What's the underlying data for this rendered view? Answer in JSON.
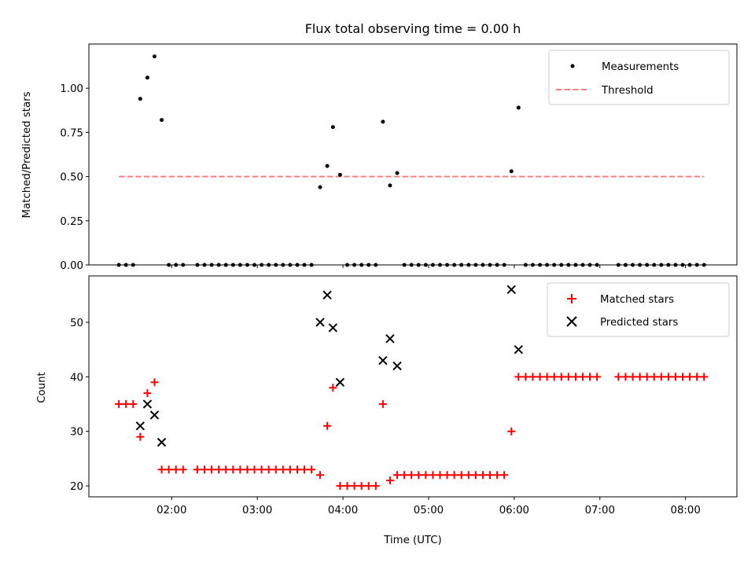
{
  "chart_data": [
    {
      "type": "scatter",
      "title": "Flux total observing time = 0.00 h",
      "xlabel": "",
      "ylabel": "Matched/Predicted stars",
      "ylim": [
        0,
        1.25
      ],
      "yticks": [
        "0.00",
        "0.25",
        "0.50",
        "0.75",
        "1.00"
      ],
      "ytick_values": [
        0,
        0.25,
        0.5,
        0.75,
        1.0
      ],
      "grid": false,
      "legend_position": "top-right",
      "series": [
        {
          "name": "Measurements",
          "kind": "scatter",
          "marker": "dot",
          "color": "#000000",
          "points": [
            [
              "01:23",
              0
            ],
            [
              "01:28",
              0
            ],
            [
              "01:33",
              0
            ],
            [
              "01:38",
              0.94
            ],
            [
              "01:43",
              1.06
            ],
            [
              "01:48",
              1.18
            ],
            [
              "01:53",
              0.82
            ],
            [
              "01:58",
              0
            ],
            [
              "02:03",
              0
            ],
            [
              "02:08",
              0
            ],
            [
              "02:18",
              0
            ],
            [
              "02:23",
              0
            ],
            [
              "02:28",
              0
            ],
            [
              "02:33",
              0
            ],
            [
              "02:38",
              0
            ],
            [
              "02:43",
              0
            ],
            [
              "02:48",
              0
            ],
            [
              "02:53",
              0
            ],
            [
              "02:58",
              0
            ],
            [
              "03:03",
              0
            ],
            [
              "03:08",
              0
            ],
            [
              "03:13",
              0
            ],
            [
              "03:18",
              0
            ],
            [
              "03:23",
              0
            ],
            [
              "03:28",
              0
            ],
            [
              "03:33",
              0
            ],
            [
              "03:38",
              0
            ],
            [
              "03:44",
              0.44
            ],
            [
              "03:49",
              0.56
            ],
            [
              "03:53",
              0.78
            ],
            [
              "03:58",
              0.51
            ],
            [
              "04:03",
              0
            ],
            [
              "04:08",
              0
            ],
            [
              "04:13",
              0
            ],
            [
              "04:18",
              0
            ],
            [
              "04:23",
              0
            ],
            [
              "04:28",
              0.81
            ],
            [
              "04:33",
              0.45
            ],
            [
              "04:38",
              0.52
            ],
            [
              "04:43",
              0
            ],
            [
              "04:48",
              0
            ],
            [
              "04:53",
              0
            ],
            [
              "04:58",
              0
            ],
            [
              "05:03",
              0
            ],
            [
              "05:08",
              0
            ],
            [
              "05:13",
              0
            ],
            [
              "05:18",
              0
            ],
            [
              "05:23",
              0
            ],
            [
              "05:28",
              0
            ],
            [
              "05:33",
              0
            ],
            [
              "05:38",
              0
            ],
            [
              "05:43",
              0
            ],
            [
              "05:48",
              0
            ],
            [
              "05:53",
              0
            ],
            [
              "05:58",
              0.53
            ],
            [
              "06:03",
              0.89
            ],
            [
              "06:08",
              0
            ],
            [
              "06:13",
              0
            ],
            [
              "06:18",
              0
            ],
            [
              "06:23",
              0
            ],
            [
              "06:28",
              0
            ],
            [
              "06:33",
              0
            ],
            [
              "06:38",
              0
            ],
            [
              "06:43",
              0
            ],
            [
              "06:48",
              0
            ],
            [
              "06:53",
              0
            ],
            [
              "06:58",
              0
            ],
            [
              "07:13",
              0
            ],
            [
              "07:18",
              0
            ],
            [
              "07:23",
              0
            ],
            [
              "07:28",
              0
            ],
            [
              "07:33",
              0
            ],
            [
              "07:38",
              0
            ],
            [
              "07:43",
              0
            ],
            [
              "07:48",
              0
            ],
            [
              "07:53",
              0
            ],
            [
              "07:58",
              0
            ],
            [
              "08:03",
              0
            ],
            [
              "08:08",
              0
            ],
            [
              "08:13",
              0
            ]
          ]
        },
        {
          "name": "Threshold",
          "kind": "dashed-line",
          "color": "#ff7f7f",
          "points": [
            [
              "01:23",
              0.5
            ],
            [
              "08:13",
              0.5
            ]
          ]
        }
      ]
    },
    {
      "type": "scatter",
      "title": "",
      "xlabel": "Time (UTC)",
      "ylabel": "Count",
      "ylim": [
        18,
        58.5
      ],
      "yticks": [
        "20",
        "30",
        "40",
        "50"
      ],
      "ytick_values": [
        20,
        30,
        40,
        50
      ],
      "xticks": [
        "02:00",
        "03:00",
        "04:00",
        "05:00",
        "06:00",
        "07:00",
        "08:00"
      ],
      "xlim": [
        "01:02",
        "08:36"
      ],
      "grid": false,
      "legend_position": "top-right",
      "series": [
        {
          "name": "Matched stars",
          "kind": "scatter",
          "marker": "plus",
          "color": "#ff0000",
          "points": [
            [
              "01:23",
              35
            ],
            [
              "01:28",
              35
            ],
            [
              "01:33",
              35
            ],
            [
              "01:38",
              29
            ],
            [
              "01:43",
              37
            ],
            [
              "01:48",
              39
            ],
            [
              "01:53",
              23
            ],
            [
              "01:58",
              23
            ],
            [
              "02:03",
              23
            ],
            [
              "02:08",
              23
            ],
            [
              "02:18",
              23
            ],
            [
              "02:23",
              23
            ],
            [
              "02:28",
              23
            ],
            [
              "02:33",
              23
            ],
            [
              "02:38",
              23
            ],
            [
              "02:43",
              23
            ],
            [
              "02:48",
              23
            ],
            [
              "02:53",
              23
            ],
            [
              "02:58",
              23
            ],
            [
              "03:03",
              23
            ],
            [
              "03:08",
              23
            ],
            [
              "03:13",
              23
            ],
            [
              "03:18",
              23
            ],
            [
              "03:23",
              23
            ],
            [
              "03:28",
              23
            ],
            [
              "03:33",
              23
            ],
            [
              "03:38",
              23
            ],
            [
              "03:44",
              22
            ],
            [
              "03:49",
              31
            ],
            [
              "03:53",
              38
            ],
            [
              "03:58",
              20
            ],
            [
              "04:03",
              20
            ],
            [
              "04:08",
              20
            ],
            [
              "04:13",
              20
            ],
            [
              "04:18",
              20
            ],
            [
              "04:23",
              20
            ],
            [
              "04:28",
              35
            ],
            [
              "04:33",
              21
            ],
            [
              "04:38",
              22
            ],
            [
              "04:43",
              22
            ],
            [
              "04:48",
              22
            ],
            [
              "04:53",
              22
            ],
            [
              "04:58",
              22
            ],
            [
              "05:03",
              22
            ],
            [
              "05:08",
              22
            ],
            [
              "05:13",
              22
            ],
            [
              "05:18",
              22
            ],
            [
              "05:23",
              22
            ],
            [
              "05:28",
              22
            ],
            [
              "05:33",
              22
            ],
            [
              "05:38",
              22
            ],
            [
              "05:43",
              22
            ],
            [
              "05:48",
              22
            ],
            [
              "05:53",
              22
            ],
            [
              "05:58",
              30
            ],
            [
              "06:03",
              40
            ],
            [
              "06:08",
              40
            ],
            [
              "06:13",
              40
            ],
            [
              "06:18",
              40
            ],
            [
              "06:23",
              40
            ],
            [
              "06:28",
              40
            ],
            [
              "06:33",
              40
            ],
            [
              "06:38",
              40
            ],
            [
              "06:43",
              40
            ],
            [
              "06:48",
              40
            ],
            [
              "06:53",
              40
            ],
            [
              "06:58",
              40
            ],
            [
              "07:13",
              40
            ],
            [
              "07:18",
              40
            ],
            [
              "07:23",
              40
            ],
            [
              "07:28",
              40
            ],
            [
              "07:33",
              40
            ],
            [
              "07:38",
              40
            ],
            [
              "07:43",
              40
            ],
            [
              "07:48",
              40
            ],
            [
              "07:53",
              40
            ],
            [
              "07:58",
              40
            ],
            [
              "08:03",
              40
            ],
            [
              "08:08",
              40
            ],
            [
              "08:13",
              40
            ]
          ]
        },
        {
          "name": "Predicted stars",
          "kind": "scatter",
          "marker": "x",
          "color": "#000000",
          "points": [
            [
              "01:38",
              31
            ],
            [
              "01:43",
              35
            ],
            [
              "01:48",
              33
            ],
            [
              "01:53",
              28
            ],
            [
              "03:44",
              50
            ],
            [
              "03:49",
              55
            ],
            [
              "03:53",
              49
            ],
            [
              "03:58",
              39
            ],
            [
              "04:28",
              43
            ],
            [
              "04:33",
              47
            ],
            [
              "04:38",
              42
            ],
            [
              "05:58",
              56
            ],
            [
              "06:03",
              45
            ]
          ]
        }
      ]
    }
  ]
}
